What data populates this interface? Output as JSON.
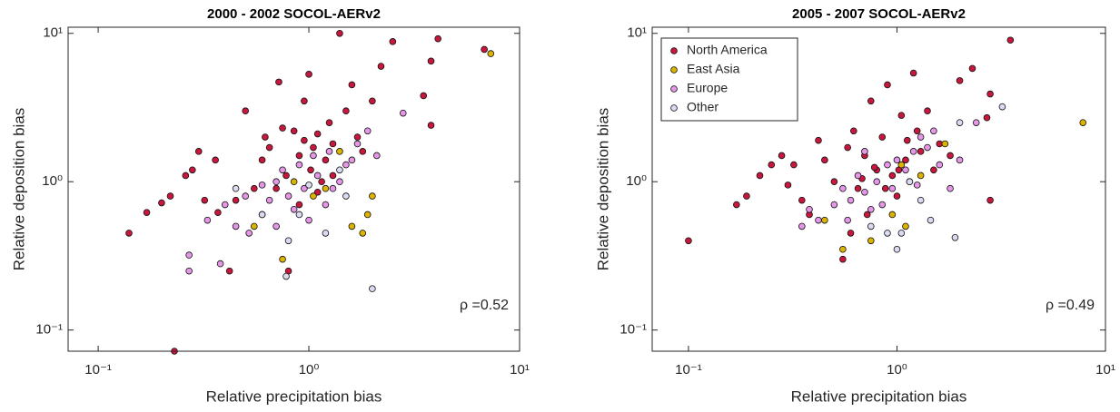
{
  "chart_data": [
    {
      "type": "scatter",
      "title": "2000 - 2002 SOCOL-AERv2",
      "xlabel": "Relative precipitation bias",
      "ylabel": "Relative deposition bias",
      "annotation": "ρ =0.52",
      "log_x": true,
      "log_y": true,
      "legend": false,
      "xlim": [
        0.072,
        10
      ],
      "ylim": [
        0.072,
        11
      ],
      "xticks": [
        {
          "value": 0.1,
          "label": "10⁻¹"
        },
        {
          "value": 1,
          "label": "10⁰"
        },
        {
          "value": 10,
          "label": "10¹"
        }
      ],
      "yticks": [
        {
          "value": 0.1,
          "label": "10⁻¹"
        },
        {
          "value": 1,
          "label": "10⁰"
        },
        {
          "value": 10,
          "label": "10¹"
        }
      ],
      "series": [
        {
          "name": "North America",
          "color": "#c8173d",
          "x": [
            0.14,
            0.17,
            0.2,
            0.23,
            0.22,
            0.26,
            0.28,
            0.3,
            0.32,
            0.36,
            0.37,
            0.42,
            0.45,
            0.5,
            0.55,
            0.6,
            0.62,
            0.65,
            0.72,
            0.75,
            0.78,
            0.8,
            0.85,
            0.9,
            0.95,
            1.0,
            1.02,
            1.05,
            1.1,
            1.15,
            1.2,
            1.25,
            1.3,
            1.4,
            1.5,
            1.6,
            1.7,
            1.8,
            2.0,
            2.2,
            2.5,
            3.5,
            3.8,
            4.1,
            3.8,
            6.8,
            0.7,
            0.9,
            1.1,
            0.6,
            1.3,
            0.95
          ],
          "values": [
            0.45,
            0.62,
            0.72,
            0.072,
            0.8,
            1.1,
            1.2,
            1.6,
            0.75,
            1.4,
            0.62,
            0.25,
            0.75,
            3,
            0.9,
            1.4,
            2,
            1.7,
            4.7,
            2.3,
            1.1,
            0.25,
            2.2,
            1.5,
            3.5,
            5.3,
            1.2,
            1.7,
            2.1,
            1.0,
            1.4,
            2.5,
            1.8,
            10,
            3,
            4.5,
            2,
            1.6,
            3.5,
            6,
            8.8,
            3.8,
            6.5,
            9.2,
            2.4,
            7.8,
            0.9,
            0.7,
            0.85,
            0.6,
            1.1,
            1.9
          ]
        },
        {
          "name": "East Asia",
          "color": "#dcb400",
          "x": [
            0.55,
            0.75,
            1.05,
            1.2,
            1.6,
            1.8,
            1.9,
            2.0,
            1.4,
            7.3,
            0.85
          ],
          "values": [
            0.5,
            0.3,
            0.8,
            0.9,
            0.5,
            0.45,
            0.6,
            0.8,
            1.6,
            7.3,
            1.0
          ]
        },
        {
          "name": "Europe",
          "color": "#e596e6",
          "x": [
            0.27,
            0.27,
            0.33,
            0.38,
            0.4,
            0.45,
            0.5,
            0.52,
            0.6,
            0.65,
            0.7,
            0.75,
            0.8,
            0.85,
            0.9,
            0.95,
            1.05,
            1.1,
            1.2,
            1.3,
            1.4,
            1.5,
            1.6,
            1.7,
            1.9,
            2.1,
            2.8,
            1.0,
            0.7,
            1.25
          ],
          "values": [
            0.32,
            0.25,
            0.55,
            0.28,
            0.7,
            0.5,
            0.8,
            0.45,
            0.95,
            0.75,
            0.5,
            1.2,
            0.8,
            0.65,
            1.3,
            0.9,
            1.5,
            1.1,
            0.7,
            0.9,
            1.0,
            1.3,
            1.4,
            1.8,
            2.2,
            1.5,
            2.9,
            0.55,
            1.0,
            1.6
          ]
        },
        {
          "name": "Other",
          "color": "#dadaf2",
          "x": [
            0.45,
            0.6,
            0.8,
            0.9,
            1.0,
            1.2,
            1.4,
            2.0,
            0.78,
            1.5
          ],
          "values": [
            0.9,
            0.6,
            0.4,
            0.6,
            0.95,
            0.45,
            1.2,
            0.19,
            0.23,
            0.8
          ]
        }
      ]
    },
    {
      "type": "scatter",
      "title": "2005 - 2007 SOCOL-AERv2",
      "xlabel": "Relative precipitation bias",
      "ylabel": "Relative deposition bias",
      "annotation": "ρ =0.49",
      "log_x": true,
      "log_y": true,
      "legend": "northwest",
      "xlim": [
        0.067,
        10
      ],
      "ylim": [
        0.072,
        11
      ],
      "xticks": [
        {
          "value": 0.1,
          "label": "10⁻¹"
        },
        {
          "value": 1,
          "label": "10⁰"
        },
        {
          "value": 10,
          "label": "10¹"
        }
      ],
      "yticks": [
        {
          "value": 0.1,
          "label": "10⁻¹"
        },
        {
          "value": 1,
          "label": "10⁰"
        },
        {
          "value": 10,
          "label": "10¹"
        }
      ],
      "series": [
        {
          "name": "North America",
          "color": "#c8173d",
          "x": [
            0.1,
            0.17,
            0.19,
            0.22,
            0.25,
            0.28,
            0.3,
            0.32,
            0.35,
            0.38,
            0.42,
            0.45,
            0.5,
            0.55,
            0.58,
            0.62,
            0.65,
            0.7,
            0.75,
            0.8,
            0.85,
            0.9,
            0.95,
            1.0,
            1.05,
            1.1,
            1.15,
            1.2,
            1.25,
            1.3,
            1.4,
            1.5,
            1.6,
            1.8,
            2.0,
            2.3,
            2.7,
            2.8,
            3.5,
            2.8,
            0.6,
            0.72,
            0.88,
            1.02,
            0.78,
            1.12,
            0.68
          ],
          "values": [
            0.4,
            0.7,
            0.8,
            1.1,
            1.3,
            1.5,
            0.95,
            1.3,
            0.75,
            0.6,
            1.9,
            1.4,
            1.0,
            0.3,
            1.7,
            2.2,
            0.9,
            1.5,
            3.5,
            1.2,
            2.0,
            4.5,
            1.1,
            0.8,
            2.8,
            1.4,
            1.0,
            5.4,
            2.2,
            1.6,
            3.0,
            1.2,
            1.8,
            1.5,
            4.8,
            5.8,
            2.7,
            3.9,
            9.0,
            0.75,
            0.45,
            0.6,
            0.9,
            1.2,
            1.25,
            1.9,
            1.05
          ]
        },
        {
          "name": "East Asia",
          "color": "#dcb400",
          "x": [
            0.55,
            0.75,
            0.95,
            1.05,
            1.3,
            1.7,
            7.8,
            0.45,
            1.1
          ],
          "values": [
            0.35,
            0.4,
            0.6,
            1.3,
            1.1,
            1.8,
            2.5,
            0.55,
            0.5
          ]
        },
        {
          "name": "Europe",
          "color": "#e596e6",
          "x": [
            0.35,
            0.38,
            0.42,
            0.5,
            0.55,
            0.6,
            0.65,
            0.7,
            0.75,
            0.8,
            0.85,
            0.9,
            0.95,
            1.0,
            1.1,
            1.2,
            1.3,
            1.4,
            1.5,
            1.6,
            1.8,
            2.0,
            2.4,
            0.7,
            1.25,
            0.58
          ],
          "values": [
            0.5,
            0.65,
            0.55,
            0.7,
            0.9,
            0.75,
            1.1,
            0.85,
            0.65,
            1.0,
            0.7,
            1.3,
            0.9,
            1.4,
            1.2,
            1.6,
            2.0,
            1.7,
            2.2,
            1.3,
            0.9,
            1.4,
            2.5,
            1.6,
            0.95,
            0.55
          ]
        },
        {
          "name": "Other",
          "color": "#dadaf2",
          "x": [
            0.75,
            0.9,
            1.0,
            1.05,
            1.3,
            1.45,
            1.9,
            2.0,
            3.2,
            1.15
          ],
          "values": [
            0.5,
            0.45,
            0.35,
            0.45,
            0.75,
            0.55,
            0.42,
            2.5,
            3.2,
            1.0
          ]
        }
      ]
    }
  ]
}
